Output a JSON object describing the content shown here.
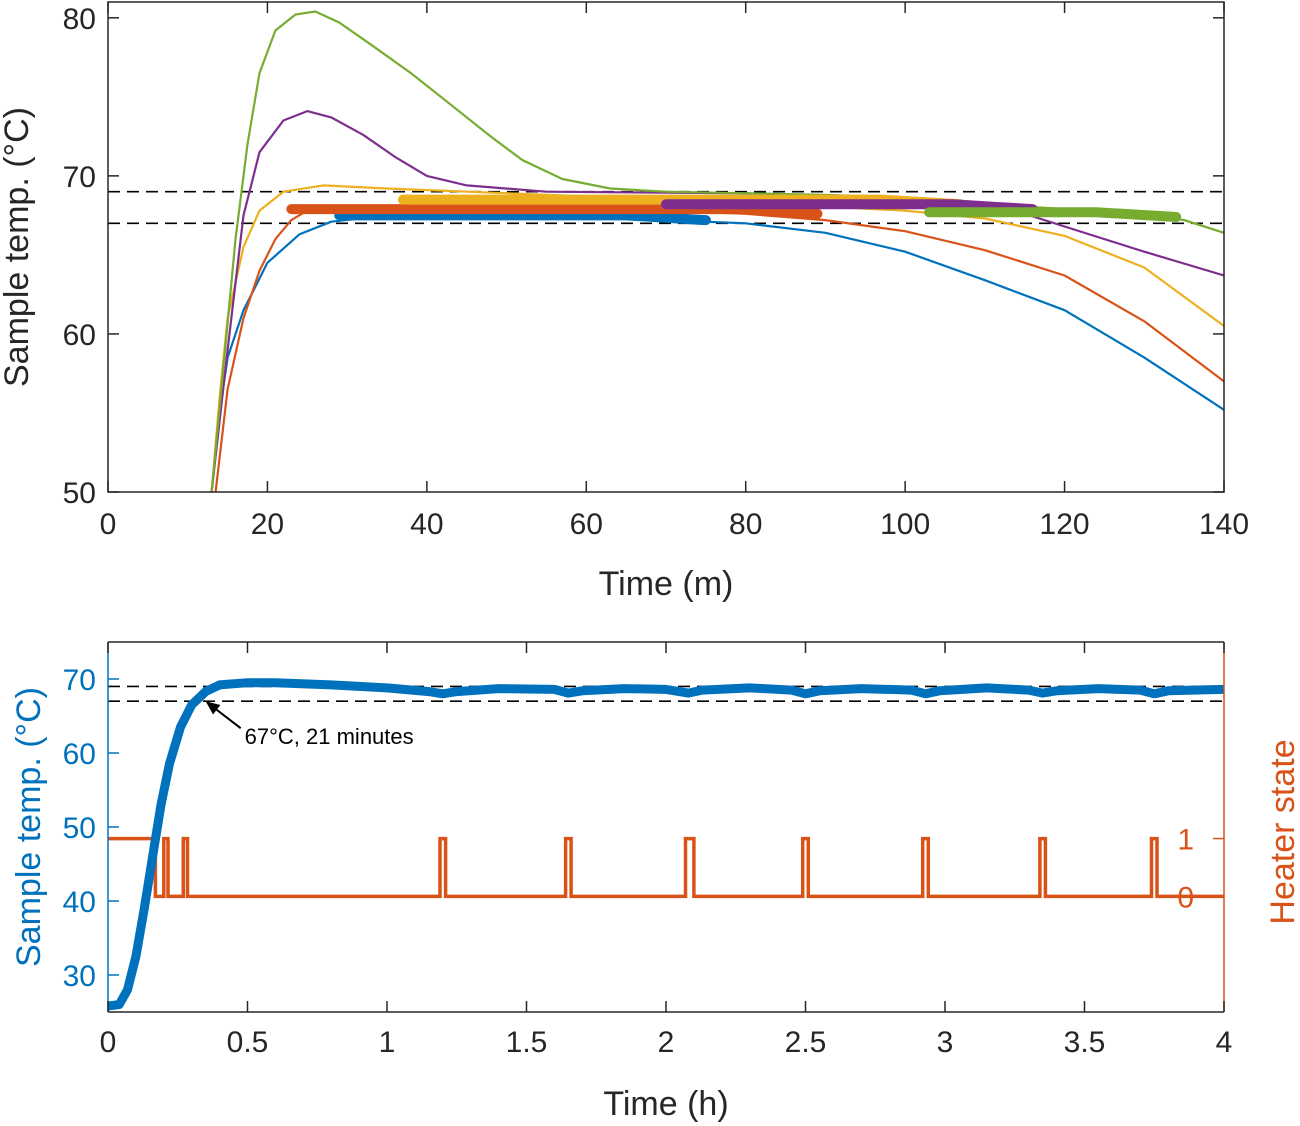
{
  "chart_data": [
    {
      "type": "line",
      "xlabel": "Time (m)",
      "ylabel": "Sample temp. (°C)",
      "xlim": [
        0,
        140
      ],
      "ylim": [
        50,
        81
      ],
      "xticks": [
        0,
        20,
        40,
        60,
        80,
        100,
        120,
        140
      ],
      "yticks": [
        50,
        60,
        70,
        80
      ],
      "grid": false,
      "reference_lines_y": [
        67,
        69
      ],
      "reference_line_style": "dashed black",
      "series": [
        {
          "color": "#0072BD",
          "thin_points": [
            [
              13,
              50
            ],
            [
              14,
              55
            ],
            [
              15,
              58.5
            ],
            [
              17,
              61.5
            ],
            [
              20,
              64.5
            ],
            [
              24,
              66.3
            ],
            [
              28,
              67.1
            ],
            [
              35,
              67.5
            ],
            [
              50,
              67.6
            ],
            [
              60,
              67.4
            ],
            [
              70,
              67.2
            ],
            [
              80,
              67
            ],
            [
              90,
              66.4
            ],
            [
              100,
              65.2
            ],
            [
              110,
              63.4
            ],
            [
              120,
              61.5
            ],
            [
              130,
              58.5
            ],
            [
              140,
              55.2
            ]
          ],
          "bold_range": [
            29,
            75
          ],
          "bold_value": 67.5
        },
        {
          "color": "#D95319",
          "thin_points": [
            [
              13.5,
              50
            ],
            [
              15,
              56.5
            ],
            [
              17,
              61
            ],
            [
              19,
              64
            ],
            [
              21,
              66
            ],
            [
              23,
              67.2
            ],
            [
              25,
              67.8
            ],
            [
              40,
              68.2
            ],
            [
              60,
              68
            ],
            [
              80,
              67.6
            ],
            [
              90,
              67.2
            ],
            [
              100,
              66.5
            ],
            [
              110,
              65.3
            ],
            [
              120,
              63.7
            ],
            [
              130,
              60.8
            ],
            [
              140,
              57
            ]
          ],
          "bold_range": [
            23,
            89
          ],
          "bold_value": 67.9
        },
        {
          "color": "#EDB120",
          "thin_points": [
            [
              13,
              50
            ],
            [
              14,
              56
            ],
            [
              15,
              61
            ],
            [
              17,
              65.5
            ],
            [
              19,
              67.8
            ],
            [
              22,
              69
            ],
            [
              27,
              69.4
            ],
            [
              35,
              69.2
            ],
            [
              60,
              68.7
            ],
            [
              80,
              68.3
            ],
            [
              100,
              67.8
            ],
            [
              110,
              67.3
            ],
            [
              120,
              66.2
            ],
            [
              130,
              64.2
            ],
            [
              140,
              60.5
            ]
          ],
          "bold_range": [
            37,
            107
          ],
          "bold_value": 68.5
        },
        {
          "color": "#7E2F8E",
          "thin_points": [
            [
              13,
              50
            ],
            [
              15,
              59
            ],
            [
              17,
              67.5
            ],
            [
              19,
              71.5
            ],
            [
              22,
              73.5
            ],
            [
              25,
              74.1
            ],
            [
              28,
              73.7
            ],
            [
              32,
              72.6
            ],
            [
              36,
              71.2
            ],
            [
              40,
              70
            ],
            [
              45,
              69.4
            ],
            [
              55,
              69
            ],
            [
              80,
              68.9
            ],
            [
              100,
              68.6
            ],
            [
              115,
              67.6
            ],
            [
              120,
              66.8
            ],
            [
              130,
              65.2
            ],
            [
              140,
              63.7
            ]
          ],
          "bold_range": [
            70,
            116
          ],
          "bold_value": 68.2
        },
        {
          "color": "#77AC30",
          "thin_points": [
            [
              13,
              50
            ],
            [
              14.5,
              58
            ],
            [
              16,
              66
            ],
            [
              17.5,
              72
            ],
            [
              19,
              76.5
            ],
            [
              21,
              79.2
            ],
            [
              23.5,
              80.2
            ],
            [
              26,
              80.4
            ],
            [
              29,
              79.7
            ],
            [
              33,
              78.3
            ],
            [
              38,
              76.5
            ],
            [
              43,
              74.5
            ],
            [
              48,
              72.5
            ],
            [
              52,
              71
            ],
            [
              57,
              69.8
            ],
            [
              63,
              69.2
            ],
            [
              70,
              69
            ],
            [
              90,
              68.8
            ],
            [
              100,
              68.6
            ],
            [
              110,
              68.2
            ],
            [
              130,
              67.6
            ],
            [
              135,
              67.2
            ],
            [
              140,
              66.4
            ]
          ],
          "bold_range": [
            103,
            134
          ],
          "bold_value": 67.7
        }
      ]
    },
    {
      "type": "line",
      "xlabel": "Time (h)",
      "ylabel": "Sample temp. (°C)",
      "ylabel_right": "Heater state",
      "xlim": [
        0,
        4
      ],
      "ylim": [
        25,
        75
      ],
      "ylim_right": [
        -2,
        4.4
      ],
      "xticks": [
        0,
        0.5,
        1,
        1.5,
        2,
        2.5,
        3,
        3.5,
        4
      ],
      "yticks": [
        30,
        40,
        50,
        60,
        70
      ],
      "yticks_right": [
        0,
        1
      ],
      "grid": false,
      "reference_lines_y": [
        67,
        69
      ],
      "reference_line_style": "dashed black",
      "annotation": {
        "text": "67°C, 21 minutes",
        "x": 0.35,
        "y": 67
      },
      "series": [
        {
          "name": "Sample temp. (°C)",
          "axis": "left",
          "color": "#0072BD",
          "points": [
            [
              0,
              25.8
            ],
            [
              0.04,
              26
            ],
            [
              0.07,
              28
            ],
            [
              0.1,
              32.5
            ],
            [
              0.13,
              39
            ],
            [
              0.16,
              46
            ],
            [
              0.19,
              53
            ],
            [
              0.22,
              58.5
            ],
            [
              0.26,
              63.5
            ],
            [
              0.3,
              66.5
            ],
            [
              0.35,
              68.3
            ],
            [
              0.4,
              69.2
            ],
            [
              0.5,
              69.5
            ],
            [
              0.6,
              69.5
            ],
            [
              0.8,
              69.2
            ],
            [
              1,
              68.8
            ],
            [
              1.15,
              68.3
            ],
            [
              1.2,
              68
            ],
            [
              1.25,
              68.3
            ],
            [
              1.4,
              68.7
            ],
            [
              1.6,
              68.6
            ],
            [
              1.65,
              68.1
            ],
            [
              1.7,
              68.4
            ],
            [
              1.85,
              68.7
            ],
            [
              2,
              68.6
            ],
            [
              2.08,
              68.1
            ],
            [
              2.13,
              68.5
            ],
            [
              2.3,
              68.8
            ],
            [
              2.45,
              68.5
            ],
            [
              2.5,
              68
            ],
            [
              2.55,
              68.4
            ],
            [
              2.7,
              68.7
            ],
            [
              2.88,
              68.5
            ],
            [
              2.93,
              68
            ],
            [
              2.98,
              68.4
            ],
            [
              3.15,
              68.8
            ],
            [
              3.3,
              68.5
            ],
            [
              3.35,
              68.1
            ],
            [
              3.4,
              68.4
            ],
            [
              3.55,
              68.7
            ],
            [
              3.7,
              68.5
            ],
            [
              3.75,
              68
            ],
            [
              3.8,
              68.4
            ],
            [
              4,
              68.6
            ]
          ]
        },
        {
          "name": "Heater state",
          "axis": "right",
          "color": "#D95319",
          "points": [
            [
              0,
              1
            ],
            [
              0.17,
              1
            ],
            [
              0.17,
              0
            ],
            [
              0.2,
              0
            ],
            [
              0.2,
              1
            ],
            [
              0.215,
              1
            ],
            [
              0.215,
              0
            ],
            [
              0.27,
              0
            ],
            [
              0.27,
              1
            ],
            [
              0.285,
              1
            ],
            [
              0.285,
              0
            ],
            [
              1.19,
              0
            ],
            [
              1.19,
              1
            ],
            [
              1.21,
              1
            ],
            [
              1.21,
              0
            ],
            [
              1.64,
              0
            ],
            [
              1.64,
              1
            ],
            [
              1.66,
              1
            ],
            [
              1.66,
              0
            ],
            [
              2.07,
              0
            ],
            [
              2.07,
              1
            ],
            [
              2.1,
              1
            ],
            [
              2.1,
              0
            ],
            [
              2.49,
              0
            ],
            [
              2.49,
              1
            ],
            [
              2.51,
              1
            ],
            [
              2.51,
              0
            ],
            [
              2.92,
              0
            ],
            [
              2.92,
              1
            ],
            [
              2.94,
              1
            ],
            [
              2.94,
              0
            ],
            [
              3.34,
              0
            ],
            [
              3.34,
              1
            ],
            [
              3.36,
              1
            ],
            [
              3.36,
              0
            ],
            [
              3.74,
              0
            ],
            [
              3.74,
              1
            ],
            [
              3.76,
              1
            ],
            [
              3.76,
              0
            ],
            [
              4,
              0
            ]
          ]
        }
      ]
    }
  ]
}
